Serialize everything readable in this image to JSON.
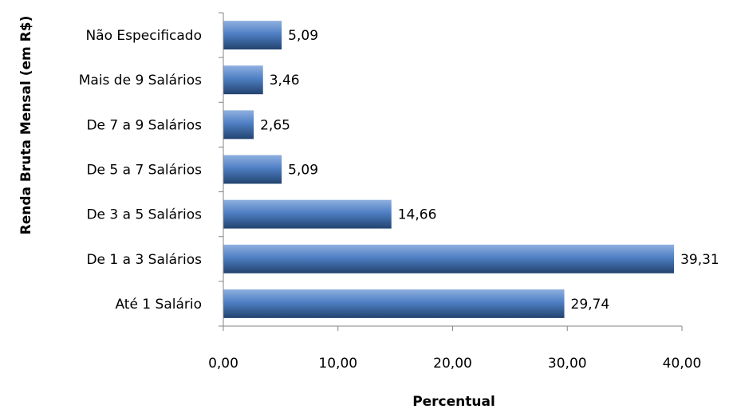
{
  "chart_data": {
    "type": "bar",
    "orientation": "horizontal",
    "categories": [
      "Até 1 Salário",
      "De 1 a 3 Salários",
      "De 3 a 5 Salários",
      "De 5 a 7 Salários",
      "De 7 a 9 Salários",
      "Mais de 9 Salários",
      "Não Especificado"
    ],
    "values": [
      29.74,
      39.31,
      14.66,
      5.09,
      2.65,
      3.46,
      5.09
    ],
    "value_labels": [
      "29,74",
      "39,31",
      "14,66",
      "5,09",
      "2,65",
      "3,46",
      "5,09"
    ],
    "xlim": [
      0,
      40
    ],
    "xticks": [
      0,
      10,
      20,
      30,
      40
    ],
    "xtick_labels": [
      "0,00",
      "10,00",
      "20,00",
      "30,00",
      "40,00"
    ],
    "xlabel": "Percentual",
    "ylabel": "Renda Bruta Mensal (em R$)",
    "title": "",
    "grid": false,
    "legend": false,
    "colors": {
      "bar_light": "#8fb0e0",
      "bar_mid": "#4f7fc4",
      "bar_dark": "#22436f",
      "axis": "#868686"
    }
  }
}
